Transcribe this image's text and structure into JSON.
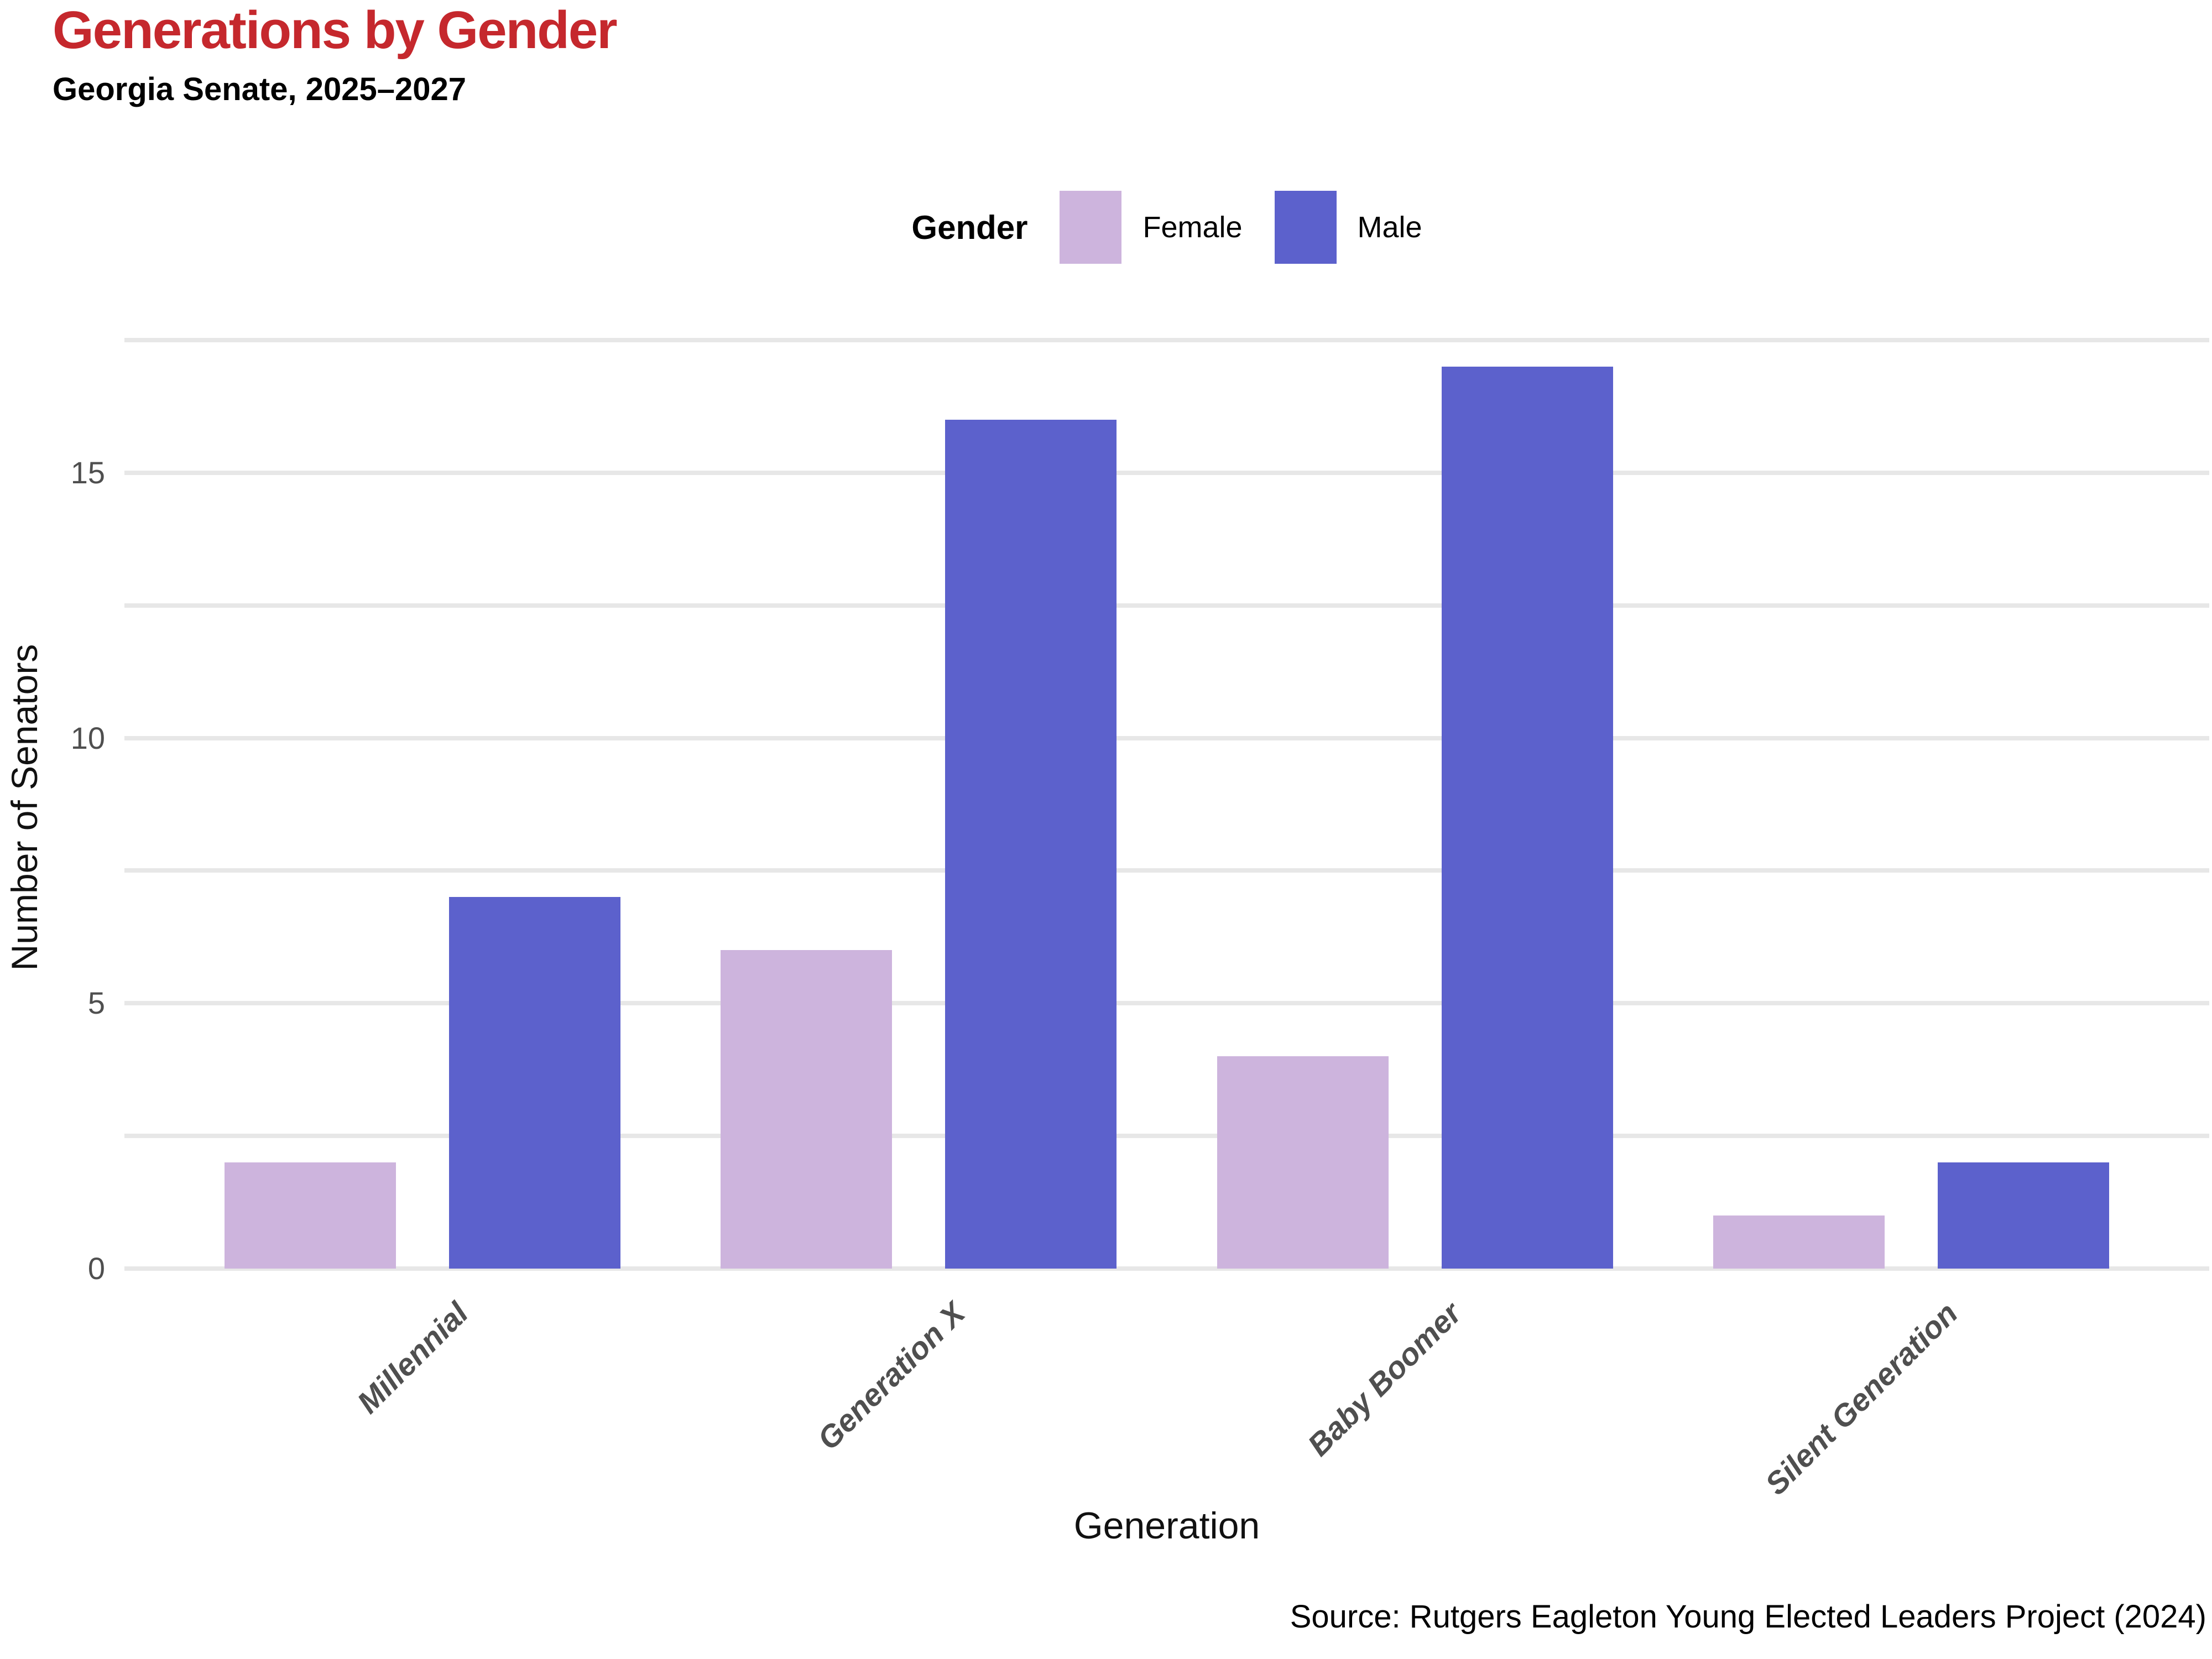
{
  "title": "Generations by Gender",
  "subtitle": "Georgia Senate, 2025–2027",
  "caption": "Source: Rutgers Eagleton Young Elected Leaders Project (2024)",
  "colors": {
    "title": "#c5282d",
    "female": "#cdb4dd",
    "male": "#5c61cc",
    "gridline": "#e7e7e7",
    "tick_label": "#4f4f4f",
    "axis_text": "#111111"
  },
  "chart_data": {
    "type": "bar",
    "title": "Generations by Gender",
    "subtitle": "Georgia Senate, 2025–2027",
    "categories": [
      "Millennial",
      "Generation X",
      "Baby Boomer",
      "Silent Generation"
    ],
    "series": [
      {
        "name": "Female",
        "color": "#cdb4dd",
        "values": [
          2,
          6,
          4,
          1
        ]
      },
      {
        "name": "Male",
        "color": "#5c61cc",
        "values": [
          7,
          16,
          17,
          2
        ]
      }
    ],
    "xlabel": "Generation",
    "ylabel": "Number of Senators",
    "ylim": [
      0,
      17.5
    ],
    "yticks": [
      0,
      5,
      10,
      15
    ],
    "gridline_interval": 2.5,
    "grid": true,
    "legend_title": "Gender",
    "legend_position": "top-center",
    "bar_orientation": "vertical"
  }
}
